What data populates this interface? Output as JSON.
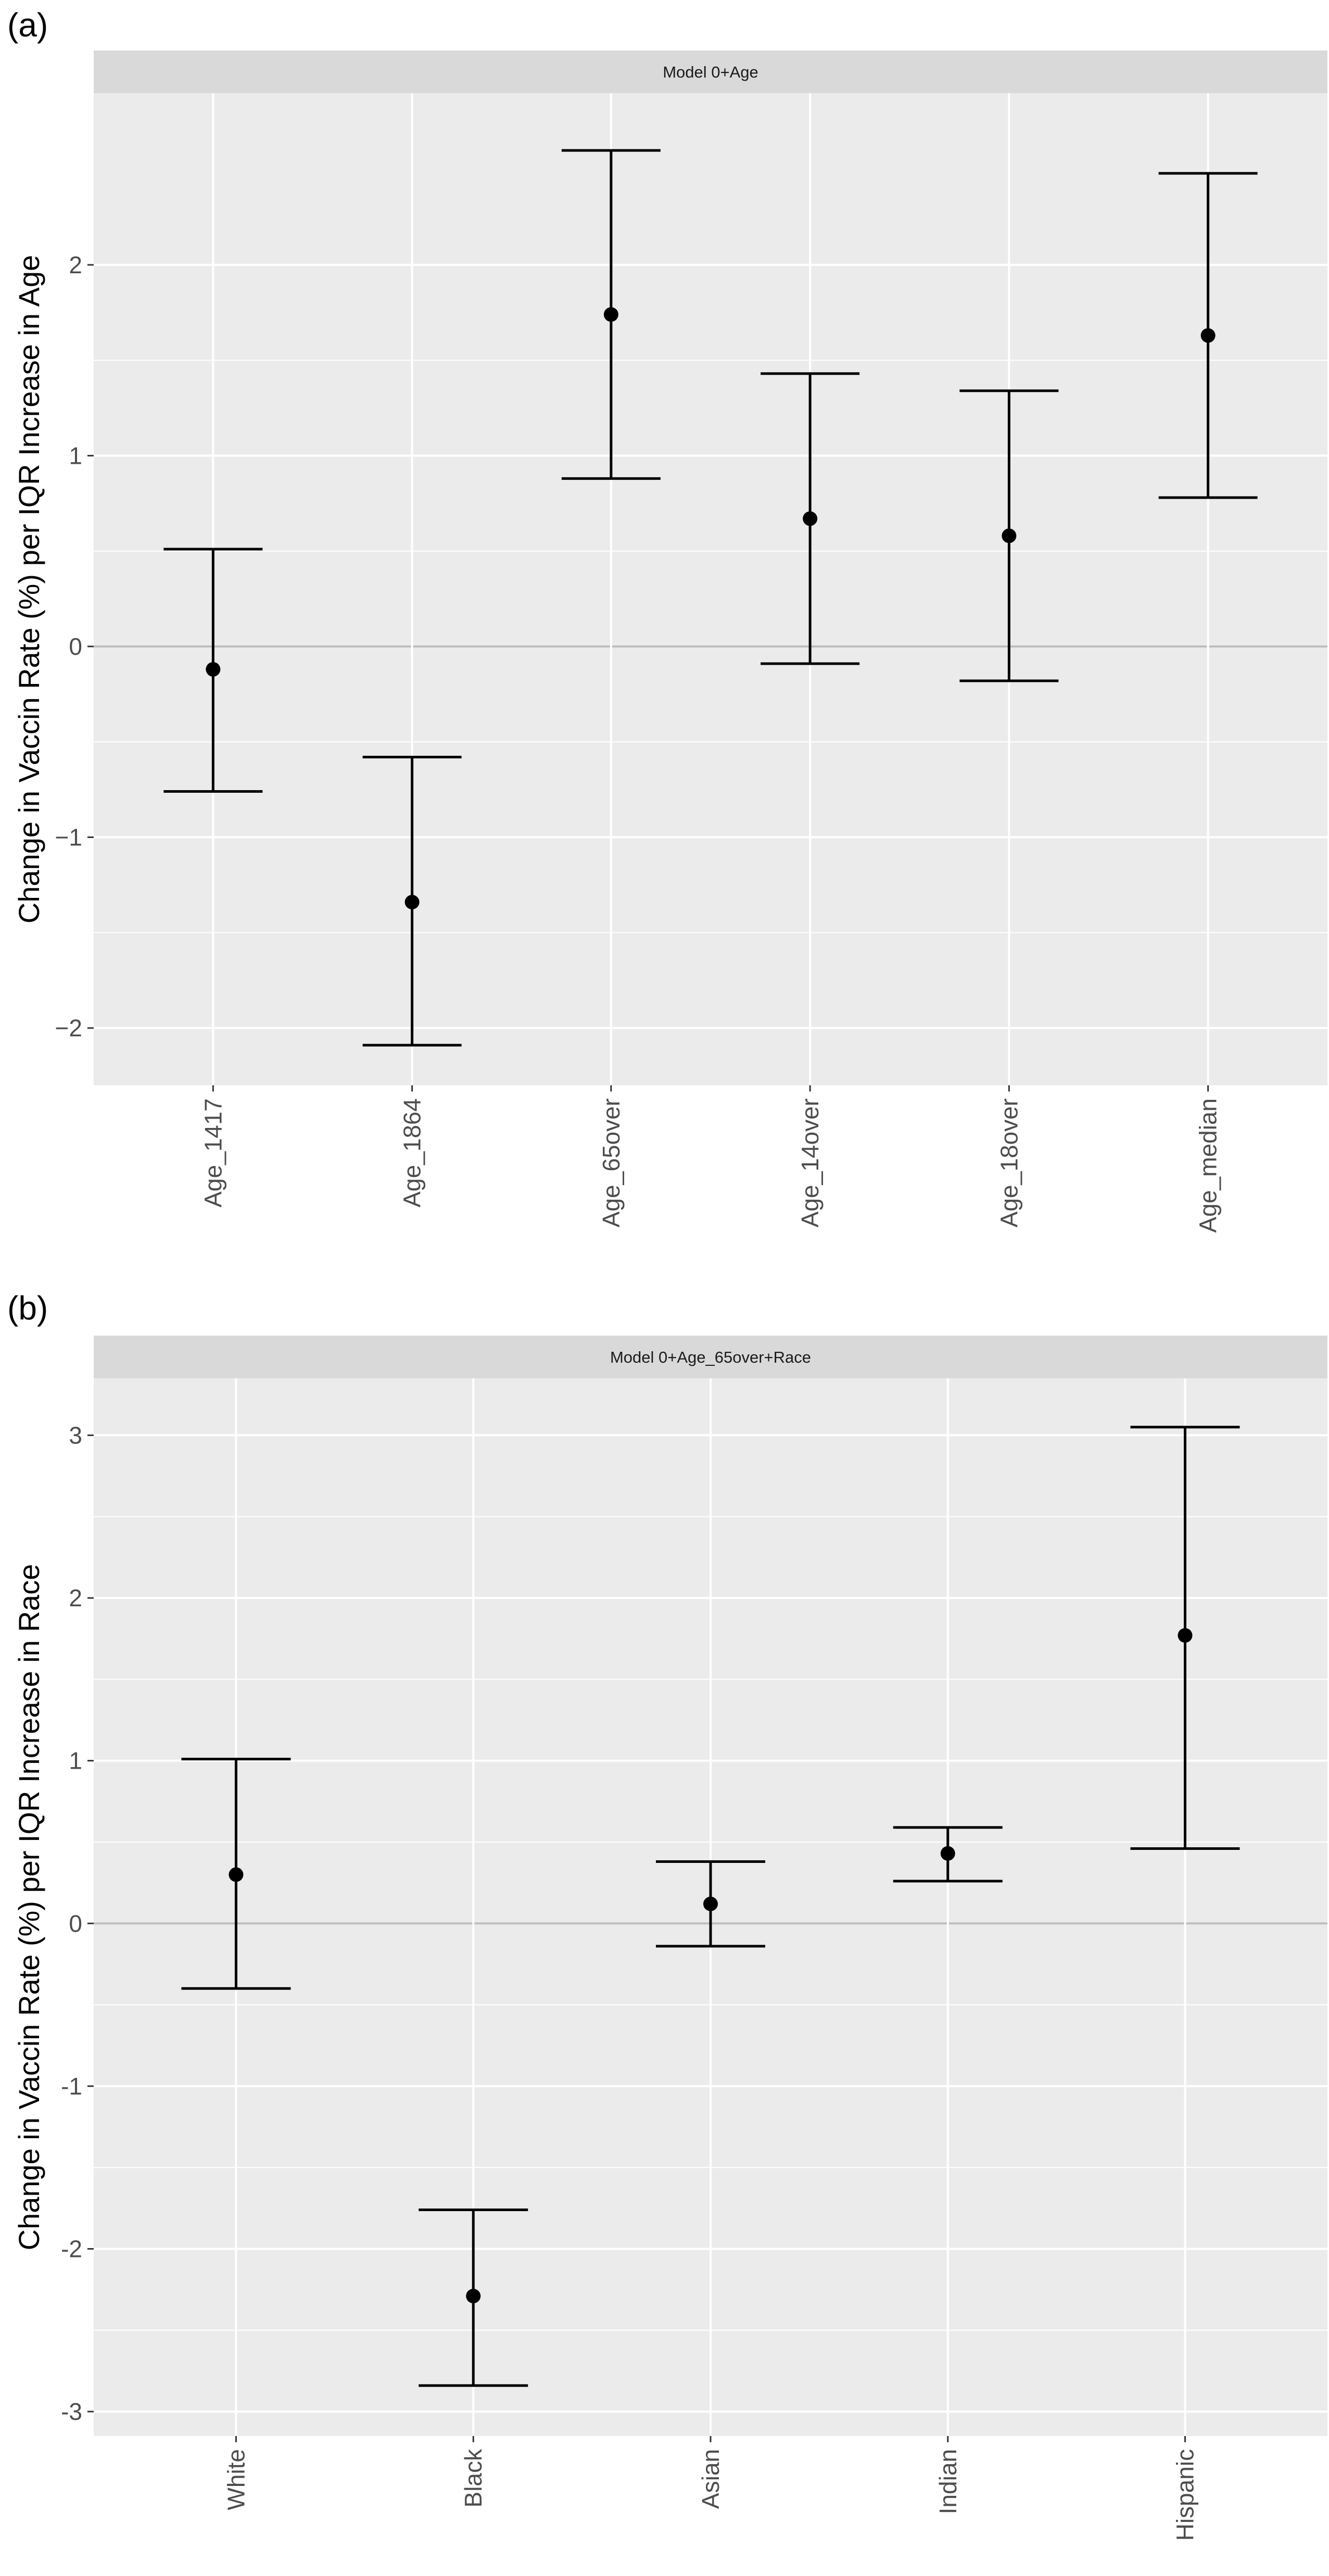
{
  "colors": {
    "panel_background": "#EBEBEB",
    "strip_background": "#D9D9D9",
    "major_grid": "#FFFFFF",
    "zero_line": "#BEBEBE",
    "point_and_errorbar": "#000000",
    "tick_label": "#4D4D4D"
  },
  "chart_data": [
    {
      "type": "errorbar",
      "panel_label": "(a)",
      "strip_title": "Model 0+Age",
      "title": "",
      "xlabel": "",
      "ylabel": "Change in Vaccin Rate (%) per IQR Increase in Age",
      "ylim": [
        -2.3,
        2.9
      ],
      "yticks": [
        -2,
        -1,
        0,
        1,
        2
      ],
      "ytick_labels": [
        "−2",
        "−1",
        "0",
        "1",
        "2"
      ],
      "reference_line_y": 0,
      "grid": true,
      "categories": [
        "Age_1417",
        "Age_1864",
        "Age_65over",
        "Age_14over",
        "Age_18over",
        "Age_median"
      ],
      "estimates": [
        -0.12,
        -1.34,
        1.74,
        0.67,
        0.58,
        1.63
      ],
      "lower": [
        -0.76,
        -2.09,
        0.88,
        -0.09,
        -0.18,
        0.78
      ],
      "upper": [
        0.51,
        -0.58,
        2.6,
        1.43,
        1.34,
        2.48
      ]
    },
    {
      "type": "errorbar",
      "panel_label": "(b)",
      "strip_title": "Model 0+Age_65over+Race",
      "title": "",
      "xlabel": "",
      "ylabel": "Change in Vaccin Rate (%) per IQR Increase in Race",
      "ylim": [
        -3.15,
        3.35
      ],
      "yticks": [
        -3,
        -2,
        -1,
        0,
        1,
        2,
        3
      ],
      "ytick_labels": [
        "-3",
        "-2",
        "-1",
        "0",
        "1",
        "2",
        "3"
      ],
      "reference_line_y": 0,
      "grid": true,
      "categories": [
        "White",
        "Black",
        "Asian",
        "Indian",
        "Hispanic"
      ],
      "estimates": [
        0.3,
        -2.29,
        0.12,
        0.43,
        1.77
      ],
      "lower": [
        -0.4,
        -2.84,
        -0.14,
        0.26,
        0.46
      ],
      "upper": [
        1.01,
        -1.76,
        0.38,
        0.59,
        3.05
      ]
    }
  ]
}
